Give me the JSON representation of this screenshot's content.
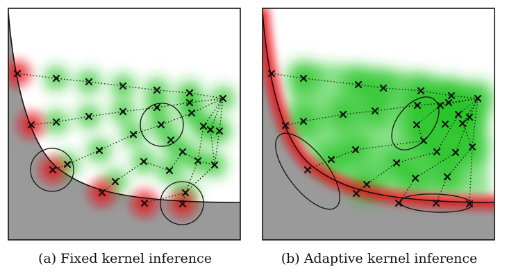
{
  "captions": {
    "a": "(a) Fixed kernel inference",
    "b": "(b) Adaptive kernel inference"
  },
  "colors": {
    "obstacle": "#9a9a9a",
    "occupied_kernel": "#e8141c",
    "free_kernel": "#22c422",
    "marker": "#111111",
    "frame": "#111111"
  },
  "marker_glyph": "×"
}
